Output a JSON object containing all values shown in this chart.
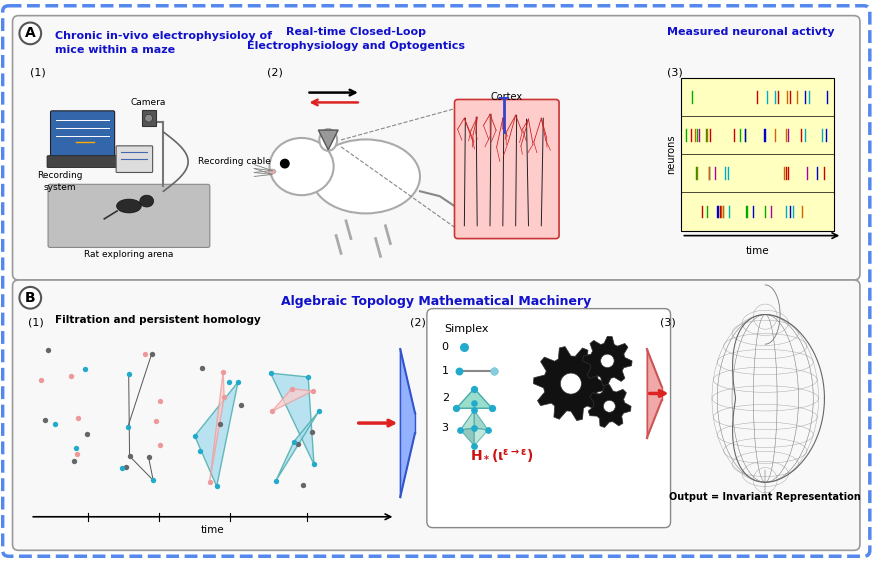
{
  "fig_width": 8.83,
  "fig_height": 5.62,
  "bg_color": "#ffffff",
  "outer_border_color": "#5588ee",
  "panel_A": {
    "label": "A",
    "title1": "Chronic in-vivo electrophysioloy of\nmice within a maze",
    "title2": "Real-time Closed-Loop\nElectrophysiology and Optogentics",
    "title3": "Measured neuronal activty",
    "title_color": "#1111cc"
  },
  "panel_B": {
    "label": "B",
    "title": "Algebraic Topology Mathematical Machinery",
    "title_color": "#1111cc",
    "subtitle1": "Filtration and persistent homology",
    "output_label": "Output = Invariant Representation",
    "time_label": "time"
  },
  "colors": {
    "blue": "#1111cc",
    "red": "#cc1111",
    "cyan": "#22aacc",
    "light_cyan": "#88ccdd",
    "pink": "#ee9999",
    "light_pink": "#ffbbbb",
    "dark": "#222222",
    "gray": "#888888",
    "light_gray": "#cccccc",
    "arrow_red": "#dd2222",
    "teal": "#44aaaa",
    "gear_black": "#111111"
  }
}
